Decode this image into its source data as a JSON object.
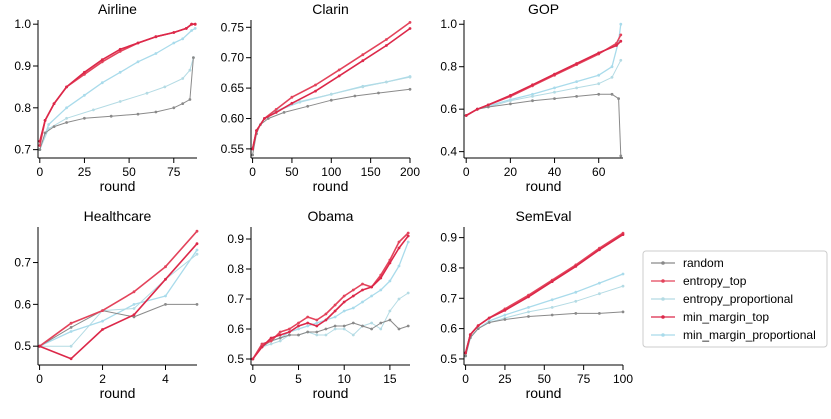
{
  "chart_data": [
    {
      "type": "line",
      "title": "Airline",
      "xlabel": "round",
      "ylabel": "",
      "xlim": [
        -1,
        88
      ],
      "ylim": [
        0.68,
        1.01
      ],
      "xticks": [
        0,
        25,
        50,
        75
      ],
      "yticks": [
        0.7,
        0.8,
        0.9,
        1.0
      ],
      "ytick_labels": [
        "0.7",
        "0.8",
        "0.9",
        "1.0"
      ],
      "series": [
        {
          "name": "random",
          "x": [
            0,
            3,
            8,
            15,
            25,
            40,
            55,
            65,
            75,
            80,
            84,
            86
          ],
          "y": [
            0.7,
            0.74,
            0.755,
            0.765,
            0.775,
            0.78,
            0.785,
            0.79,
            0.8,
            0.81,
            0.82,
            0.92
          ]
        },
        {
          "name": "entropy_top",
          "x": [
            0,
            3,
            8,
            15,
            25,
            35,
            45,
            55,
            65,
            75,
            82,
            85,
            87
          ],
          "y": [
            0.71,
            0.77,
            0.81,
            0.85,
            0.88,
            0.91,
            0.935,
            0.955,
            0.97,
            0.98,
            0.99,
            1.0,
            1.0
          ]
        },
        {
          "name": "entropy_proportional",
          "x": [
            0,
            5,
            15,
            30,
            45,
            60,
            70,
            80,
            84,
            86
          ],
          "y": [
            0.7,
            0.75,
            0.775,
            0.795,
            0.815,
            0.835,
            0.85,
            0.87,
            0.89,
            0.92
          ]
        },
        {
          "name": "min_margin_top",
          "x": [
            0,
            3,
            8,
            15,
            25,
            35,
            45,
            55,
            65,
            75,
            82,
            85,
            87
          ],
          "y": [
            0.72,
            0.77,
            0.81,
            0.85,
            0.885,
            0.915,
            0.94,
            0.955,
            0.97,
            0.98,
            0.99,
            1.0,
            1.0
          ]
        },
        {
          "name": "min_margin_proportional",
          "x": [
            0,
            5,
            15,
            25,
            35,
            45,
            55,
            65,
            75,
            80,
            85,
            87
          ],
          "y": [
            0.7,
            0.76,
            0.8,
            0.83,
            0.86,
            0.885,
            0.91,
            0.93,
            0.955,
            0.965,
            0.985,
            0.99
          ]
        }
      ]
    },
    {
      "type": "line",
      "title": "Clarin",
      "xlabel": "round",
      "ylabel": "",
      "xlim": [
        -2,
        200
      ],
      "ylim": [
        0.535,
        0.762
      ],
      "xticks": [
        0,
        50,
        100,
        150,
        200
      ],
      "yticks": [
        0.55,
        0.6,
        0.65,
        0.7,
        0.75
      ],
      "ytick_labels": [
        "0.55",
        "0.60",
        "0.65",
        "0.70",
        "0.75"
      ],
      "series": [
        {
          "name": "random",
          "x": [
            0,
            5,
            10,
            20,
            40,
            70,
            100,
            130,
            160,
            200
          ],
          "y": [
            0.54,
            0.575,
            0.59,
            0.6,
            0.61,
            0.62,
            0.63,
            0.637,
            0.642,
            0.648
          ]
        },
        {
          "name": "entropy_top",
          "x": [
            0,
            5,
            15,
            30,
            50,
            80,
            110,
            140,
            170,
            200
          ],
          "y": [
            0.55,
            0.58,
            0.6,
            0.615,
            0.635,
            0.655,
            0.68,
            0.705,
            0.73,
            0.758
          ]
        },
        {
          "name": "entropy_proportional",
          "x": [
            0,
            5,
            15,
            30,
            60,
            100,
            140,
            170,
            200
          ],
          "y": [
            0.55,
            0.58,
            0.6,
            0.613,
            0.628,
            0.64,
            0.652,
            0.66,
            0.668
          ]
        },
        {
          "name": "min_margin_top",
          "x": [
            0,
            5,
            15,
            30,
            50,
            80,
            110,
            140,
            170,
            200
          ],
          "y": [
            0.55,
            0.58,
            0.6,
            0.61,
            0.625,
            0.645,
            0.67,
            0.695,
            0.72,
            0.748
          ]
        },
        {
          "name": "min_margin_proportional",
          "x": [
            0,
            5,
            15,
            30,
            60,
            100,
            140,
            170,
            200
          ],
          "y": [
            0.55,
            0.58,
            0.6,
            0.612,
            0.627,
            0.64,
            0.653,
            0.66,
            0.669
          ]
        }
      ]
    },
    {
      "type": "line",
      "title": "GOP",
      "xlabel": "round",
      "ylabel": "",
      "xlim": [
        -1,
        71
      ],
      "ylim": [
        0.37,
        1.02
      ],
      "xticks": [
        0,
        20,
        40,
        60
      ],
      "yticks": [
        0.4,
        0.6,
        0.8,
        1.0
      ],
      "ytick_labels": [
        "0.4",
        "0.6",
        "0.8",
        "1.0"
      ],
      "series": [
        {
          "name": "random",
          "x": [
            0,
            5,
            10,
            20,
            30,
            40,
            50,
            60,
            66,
            69,
            70
          ],
          "y": [
            0.57,
            0.6,
            0.61,
            0.625,
            0.64,
            0.65,
            0.66,
            0.67,
            0.67,
            0.65,
            0.38
          ]
        },
        {
          "name": "entropy_top",
          "x": [
            0,
            5,
            10,
            20,
            30,
            40,
            50,
            60,
            68,
            70
          ],
          "y": [
            0.57,
            0.6,
            0.62,
            0.66,
            0.71,
            0.76,
            0.81,
            0.86,
            0.91,
            0.95
          ]
        },
        {
          "name": "entropy_proportional",
          "x": [
            0,
            5,
            10,
            20,
            30,
            40,
            50,
            60,
            66,
            70
          ],
          "y": [
            0.57,
            0.6,
            0.61,
            0.64,
            0.66,
            0.68,
            0.7,
            0.72,
            0.75,
            0.83
          ]
        },
        {
          "name": "min_margin_top",
          "x": [
            0,
            5,
            10,
            20,
            30,
            40,
            50,
            60,
            68,
            70
          ],
          "y": [
            0.57,
            0.6,
            0.62,
            0.665,
            0.715,
            0.765,
            0.815,
            0.865,
            0.9,
            0.92
          ]
        },
        {
          "name": "min_margin_proportional",
          "x": [
            0,
            5,
            10,
            20,
            30,
            40,
            50,
            60,
            66,
            69,
            70
          ],
          "y": [
            0.57,
            0.6,
            0.615,
            0.645,
            0.67,
            0.7,
            0.73,
            0.76,
            0.8,
            0.92,
            1.0
          ]
        }
      ]
    },
    {
      "type": "line",
      "title": "Healthcare",
      "xlabel": "round",
      "ylabel": "",
      "xlim": [
        -0.05,
        5
      ],
      "ylim": [
        0.455,
        0.785
      ],
      "xticks": [
        0,
        2,
        4
      ],
      "yticks": [
        0.5,
        0.6,
        0.7
      ],
      "ytick_labels": [
        "0.5",
        "0.6",
        "0.7"
      ],
      "series": [
        {
          "name": "random",
          "x": [
            0,
            1,
            2,
            3,
            4,
            5
          ],
          "y": [
            0.5,
            0.545,
            0.585,
            0.57,
            0.6,
            0.6
          ]
        },
        {
          "name": "entropy_top",
          "x": [
            0,
            1,
            2,
            3,
            4,
            5
          ],
          "y": [
            0.5,
            0.555,
            0.585,
            0.63,
            0.69,
            0.775
          ]
        },
        {
          "name": "entropy_proportional",
          "x": [
            0,
            1,
            2,
            3,
            4,
            5
          ],
          "y": [
            0.5,
            0.5,
            0.585,
            0.59,
            0.66,
            0.72
          ]
        },
        {
          "name": "min_margin_top",
          "x": [
            0,
            1,
            2,
            3,
            4,
            5
          ],
          "y": [
            0.5,
            0.47,
            0.54,
            0.575,
            0.66,
            0.745
          ]
        },
        {
          "name": "min_margin_proportional",
          "x": [
            0,
            1,
            2,
            3,
            4,
            5
          ],
          "y": [
            0.5,
            0.535,
            0.56,
            0.6,
            0.62,
            0.73
          ]
        }
      ]
    },
    {
      "type": "line",
      "title": "Obama",
      "xlabel": "round",
      "ylabel": "",
      "xlim": [
        -0.2,
        17.2
      ],
      "ylim": [
        0.48,
        0.94
      ],
      "xticks": [
        0,
        5,
        10,
        15
      ],
      "yticks": [
        0.5,
        0.6,
        0.7,
        0.8,
        0.9
      ],
      "ytick_labels": [
        "0.5",
        "0.6",
        "0.7",
        "0.8",
        "0.9"
      ],
      "series": [
        {
          "name": "random",
          "x": [
            0,
            1,
            2,
            3,
            4,
            5,
            6,
            7,
            8,
            9,
            10,
            11,
            12,
            13,
            14,
            15,
            16,
            17
          ],
          "y": [
            0.5,
            0.54,
            0.56,
            0.57,
            0.58,
            0.58,
            0.59,
            0.59,
            0.6,
            0.61,
            0.61,
            0.62,
            0.61,
            0.6,
            0.62,
            0.63,
            0.6,
            0.61
          ]
        },
        {
          "name": "entropy_top",
          "x": [
            0,
            1,
            2,
            3,
            4,
            5,
            6,
            7,
            8,
            9,
            10,
            11,
            12,
            13,
            14,
            15,
            16,
            17
          ],
          "y": [
            0.5,
            0.55,
            0.56,
            0.59,
            0.6,
            0.62,
            0.64,
            0.63,
            0.65,
            0.68,
            0.71,
            0.73,
            0.75,
            0.74,
            0.78,
            0.83,
            0.89,
            0.92
          ]
        },
        {
          "name": "entropy_proportional",
          "x": [
            0,
            1,
            2,
            3,
            4,
            5,
            6,
            7,
            8,
            9,
            10,
            11,
            12,
            13,
            14,
            15,
            16,
            17
          ],
          "y": [
            0.5,
            0.54,
            0.55,
            0.56,
            0.58,
            0.58,
            0.59,
            0.58,
            0.58,
            0.6,
            0.6,
            0.58,
            0.61,
            0.62,
            0.6,
            0.66,
            0.7,
            0.72
          ]
        },
        {
          "name": "min_margin_top",
          "x": [
            0,
            1,
            2,
            3,
            4,
            5,
            6,
            7,
            8,
            9,
            10,
            11,
            12,
            13,
            14,
            15,
            16,
            17
          ],
          "y": [
            0.5,
            0.54,
            0.57,
            0.58,
            0.59,
            0.61,
            0.62,
            0.61,
            0.63,
            0.66,
            0.69,
            0.71,
            0.73,
            0.74,
            0.77,
            0.82,
            0.87,
            0.91
          ]
        },
        {
          "name": "min_margin_proportional",
          "x": [
            0,
            1,
            2,
            3,
            4,
            5,
            6,
            7,
            8,
            9,
            10,
            11,
            12,
            13,
            14,
            15,
            16,
            17
          ],
          "y": [
            0.5,
            0.55,
            0.56,
            0.57,
            0.59,
            0.6,
            0.61,
            0.62,
            0.63,
            0.64,
            0.66,
            0.67,
            0.69,
            0.71,
            0.73,
            0.76,
            0.81,
            0.89
          ]
        }
      ]
    },
    {
      "type": "line",
      "title": "SemEval",
      "xlabel": "round",
      "ylabel": "",
      "xlim": [
        -1,
        100
      ],
      "ylim": [
        0.48,
        0.935
      ],
      "xticks": [
        0,
        25,
        50,
        75,
        100
      ],
      "yticks": [
        0.5,
        0.6,
        0.7,
        0.8,
        0.9
      ],
      "ytick_labels": [
        "0.5",
        "0.6",
        "0.7",
        "0.8",
        "0.9"
      ],
      "series": [
        {
          "name": "random",
          "x": [
            0,
            3,
            8,
            15,
            25,
            40,
            55,
            70,
            85,
            100
          ],
          "y": [
            0.51,
            0.57,
            0.6,
            0.62,
            0.63,
            0.64,
            0.645,
            0.65,
            0.65,
            0.655
          ]
        },
        {
          "name": "entropy_top",
          "x": [
            0,
            3,
            8,
            15,
            25,
            40,
            55,
            70,
            85,
            100
          ],
          "y": [
            0.52,
            0.58,
            0.61,
            0.635,
            0.665,
            0.71,
            0.76,
            0.81,
            0.865,
            0.915
          ]
        },
        {
          "name": "entropy_proportional",
          "x": [
            0,
            3,
            8,
            15,
            25,
            40,
            55,
            70,
            85,
            100
          ],
          "y": [
            0.51,
            0.57,
            0.6,
            0.62,
            0.635,
            0.655,
            0.67,
            0.69,
            0.715,
            0.74
          ]
        },
        {
          "name": "min_margin_top",
          "x": [
            0,
            3,
            8,
            15,
            25,
            40,
            55,
            70,
            85,
            100
          ],
          "y": [
            0.52,
            0.58,
            0.61,
            0.635,
            0.66,
            0.705,
            0.755,
            0.805,
            0.86,
            0.91
          ]
        },
        {
          "name": "min_margin_proportional",
          "x": [
            0,
            3,
            8,
            15,
            25,
            40,
            55,
            70,
            85,
            100
          ],
          "y": [
            0.51,
            0.57,
            0.6,
            0.625,
            0.645,
            0.67,
            0.695,
            0.72,
            0.75,
            0.78
          ]
        }
      ]
    }
  ],
  "legend": {
    "placement": "right",
    "entries": [
      {
        "name": "random",
        "color": "#8a8a8a",
        "marker": "dot"
      },
      {
        "name": "entropy_top",
        "color": "#e3435b",
        "marker": "dot"
      },
      {
        "name": "entropy_proportional",
        "color": "#b4dbe4",
        "marker": "dot"
      },
      {
        "name": "min_margin_top",
        "color": "#dc2849",
        "marker": "dot"
      },
      {
        "name": "min_margin_proportional",
        "color": "#a9dbeb",
        "marker": "dot"
      }
    ]
  },
  "series_colors": {
    "random": "#8a8a8a",
    "entropy_top": "#e3435b",
    "entropy_proportional": "#b4dbe4",
    "min_margin_top": "#dc2849",
    "min_margin_proportional": "#a9dbeb"
  }
}
